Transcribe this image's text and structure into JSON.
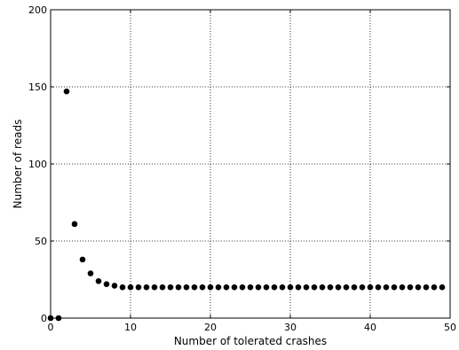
{
  "chart_data": {
    "type": "scatter",
    "title": "",
    "xlabel": "Number of tolerated crashes",
    "ylabel": "Number of reads",
    "xlim": [
      0,
      50
    ],
    "ylim": [
      0,
      200
    ],
    "xticks": [
      0,
      10,
      20,
      30,
      40,
      50
    ],
    "yticks": [
      0,
      50,
      100,
      150,
      200
    ],
    "xtick_labels": [
      "0",
      "10",
      "20",
      "30",
      "40",
      "50"
    ],
    "ytick_labels": [
      "0",
      "50",
      "100",
      "150",
      "200"
    ],
    "grid": true,
    "marker_color": "#000000",
    "series": [
      {
        "x": [
          0,
          1,
          2,
          3,
          4,
          5,
          6,
          7,
          8,
          9,
          10,
          11,
          12,
          13,
          14,
          15,
          16,
          17,
          18,
          19,
          20,
          21,
          22,
          23,
          24,
          25,
          26,
          27,
          28,
          29,
          30,
          31,
          32,
          33,
          34,
          35,
          36,
          37,
          38,
          39,
          40,
          41,
          42,
          43,
          44,
          45,
          46,
          47,
          48,
          49
        ],
        "y": [
          0,
          0,
          147,
          61,
          38,
          29,
          24,
          22,
          21,
          20,
          20,
          20,
          20,
          20,
          20,
          20,
          20,
          20,
          20,
          20,
          20,
          20,
          20,
          20,
          20,
          20,
          20,
          20,
          20,
          20,
          20,
          20,
          20,
          20,
          20,
          20,
          20,
          20,
          20,
          20,
          20,
          20,
          20,
          20,
          20,
          20,
          20,
          20,
          20,
          20
        ]
      }
    ]
  }
}
